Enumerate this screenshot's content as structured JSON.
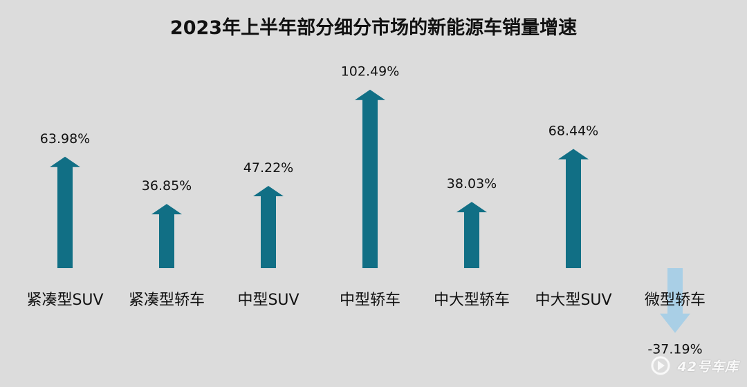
{
  "chart_data": {
    "type": "bar",
    "title": "2023年上半年部分细分市场的新能源车销量增速",
    "categories": [
      "紧凑型SUV",
      "紧凑型轿车",
      "中型SUV",
      "中型轿车",
      "中大型轿车",
      "中大型SUV",
      "微型轿车"
    ],
    "series": [
      {
        "values": [
          63.98,
          36.85,
          47.22,
          102.49,
          38.03,
          68.44,
          -37.19
        ]
      }
    ],
    "value_labels": [
      "63.98%",
      "36.85%",
      "47.22%",
      "102.49%",
      "38.03%",
      "68.44%",
      "-37.19%"
    ],
    "unit": "%",
    "xlabel": "",
    "ylabel": "",
    "grid": false,
    "legend": "none"
  },
  "colors": {
    "background": "#dcdcdc",
    "positive_arrow": "#116f85",
    "negative_arrow": "#a9cfe6",
    "text": "#111111"
  },
  "watermark": {
    "text": "42号车库"
  }
}
